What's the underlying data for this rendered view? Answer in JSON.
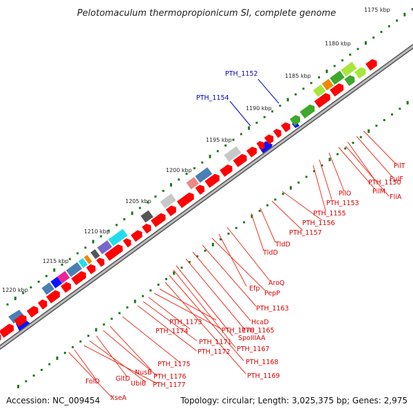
{
  "title": "Pelotomaculum thermopropionicum SI, complete genome",
  "accession": "Accession: NC_009454",
  "summary": "Topology: circular; Length: 3,025,375 bp; Genes: 2,975",
  "scale_labels": [
    "1175 kbp",
    "1180 kbp",
    "1185 kbp",
    "1190 kbp",
    "1195 kbp",
    "1200 kbp",
    "1205 kbp",
    "1210 kbp",
    "1215 kbp",
    "1220 kbp"
  ],
  "colors": {
    "backbone": "#888888",
    "cds": "#ff0000",
    "label_red": "#dd0000",
    "label_blue": "#0000cc",
    "tick": "#1a7a1a",
    "rna_blue": "#0a14ff",
    "steel": "#4a7fb5",
    "gray_light": "#c8c8c8",
    "gray_dark": "#555555",
    "green": "#3da82a",
    "light_green": "#a8e63c",
    "orange": "#ee8800",
    "cyan": "#22ddee",
    "purple": "#7766cc",
    "magenta": "#ee2299",
    "pink": "#ee8888"
  },
  "blue_labels": [
    "PTH_1152",
    "PTH_1154"
  ],
  "gene_labels": [
    "PilT",
    "PulF",
    "PTH_1150",
    "PilM",
    "FliA",
    "PilO",
    "PTH_1153",
    "PTH_1155",
    "PTH_1156",
    "PTH_1157",
    "TldD",
    "TldD",
    "AroQ",
    "Efp",
    "PepP",
    "PTH_1163",
    "HcaD",
    "PTH_1165",
    "PTH_1173",
    "PTH_1170",
    "SpoIIIAA",
    "PTH_1174",
    "PTH_1171",
    "PTH_1167",
    "PTH_1172",
    "PTH_1168",
    "PTH_1169",
    "PTH_1175",
    "NusB",
    "PTH_1176",
    "GltD",
    "UbiB",
    "PTH_1177",
    "FolD",
    "XseA"
  ]
}
